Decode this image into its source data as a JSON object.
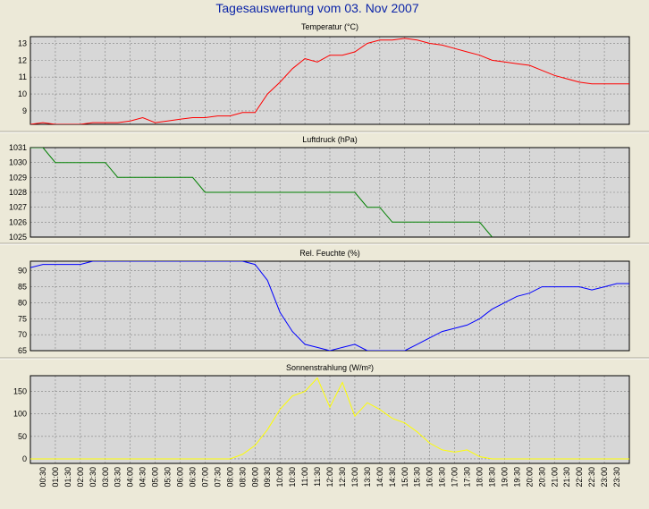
{
  "page_title": "Tagesauswertung vom 03. Nov 2007",
  "colors": {
    "background": "#ece9d8",
    "title": "#0b24a8",
    "plot_background": "#d7d7d7",
    "grid": "#808080"
  },
  "x_labels": [
    "00:30",
    "01:00",
    "01:30",
    "02:00",
    "02:30",
    "03:00",
    "03:30",
    "04:00",
    "04:30",
    "05:00",
    "05:30",
    "06:00",
    "06:30",
    "07:00",
    "07:30",
    "08:00",
    "08:30",
    "09:00",
    "09:30",
    "10:00",
    "10:30",
    "11:00",
    "11:30",
    "12:00",
    "12:30",
    "13:00",
    "13:30",
    "14:00",
    "14:30",
    "15:00",
    "15:30",
    "16:00",
    "16:30",
    "17:00",
    "17:30",
    "18:00",
    "18:30",
    "19:00",
    "19:30",
    "20:00",
    "20:30",
    "21:00",
    "21:30",
    "22:00",
    "22:30",
    "23:00",
    "23:30"
  ],
  "chart_data": [
    {
      "type": "line",
      "title": "Temperatur (°C)",
      "color": "#ff0000",
      "ylim": [
        8.2,
        13.4
      ],
      "yticks": [
        9,
        10,
        11,
        12,
        13
      ],
      "x": [
        0,
        0.5,
        1,
        1.5,
        2,
        2.5,
        3,
        3.5,
        4,
        4.5,
        5,
        5.5,
        6,
        6.5,
        7,
        7.5,
        8,
        8.5,
        9,
        9.5,
        10,
        10.5,
        11,
        11.5,
        12,
        12.5,
        13,
        13.5,
        14,
        14.5,
        15,
        15.5,
        16,
        16.5,
        17,
        17.5,
        18,
        18.5,
        19,
        19.5,
        20,
        20.5,
        21,
        21.5,
        22,
        22.5,
        23,
        23.5,
        24
      ],
      "values": [
        8.2,
        8.3,
        8.2,
        8.2,
        8.2,
        8.3,
        8.3,
        8.3,
        8.4,
        8.6,
        8.3,
        8.4,
        8.5,
        8.6,
        8.6,
        8.7,
        8.7,
        8.9,
        8.9,
        10.0,
        10.7,
        11.5,
        12.1,
        11.9,
        12.3,
        12.3,
        12.5,
        13.0,
        13.2,
        13.2,
        13.3,
        13.2,
        13.0,
        12.9,
        12.7,
        12.5,
        12.3,
        12.0,
        11.9,
        11.8,
        11.7,
        11.4,
        11.1,
        10.9,
        10.7,
        10.6,
        10.6,
        10.6,
        10.6
      ]
    },
    {
      "type": "line",
      "title": "Luftdruck (hPa)",
      "color": "#008000",
      "ylim": [
        1025,
        1031
      ],
      "yticks": [
        1025,
        1026,
        1027,
        1028,
        1029,
        1030,
        1031
      ],
      "x": [
        0,
        0.5,
        1,
        1.5,
        2,
        2.5,
        3,
        3.5,
        4,
        4.5,
        5,
        5.5,
        6,
        6.5,
        7,
        7.5,
        8,
        8.5,
        9,
        9.5,
        10,
        10.5,
        11,
        11.5,
        12,
        12.5,
        13,
        13.5,
        14,
        14.5,
        15,
        15.5,
        16,
        16.5,
        17,
        17.5,
        18,
        18.5
      ],
      "values": [
        1031,
        1031,
        1030,
        1030,
        1030,
        1030,
        1030,
        1029,
        1029,
        1029,
        1029,
        1029,
        1029,
        1029,
        1028,
        1028,
        1028,
        1028,
        1028,
        1028,
        1028,
        1028,
        1028,
        1028,
        1028,
        1028,
        1028,
        1027,
        1027,
        1026,
        1026,
        1026,
        1026,
        1026,
        1026,
        1026,
        1026,
        1025
      ]
    },
    {
      "type": "line",
      "title": "Rel. Feuchte (%)",
      "color": "#0000ff",
      "ylim": [
        65,
        93
      ],
      "yticks": [
        65,
        70,
        75,
        80,
        85,
        90
      ],
      "x": [
        0,
        0.5,
        1,
        1.5,
        2,
        2.5,
        3,
        3.5,
        4,
        4.5,
        5,
        5.5,
        6,
        6.5,
        7,
        7.5,
        8,
        8.5,
        9,
        9.5,
        10,
        10.5,
        11,
        11.5,
        12,
        12.5,
        13,
        13.5,
        14,
        14.5,
        15,
        15.5,
        16,
        16.5,
        17,
        17.5,
        18,
        18.5,
        19,
        19.5,
        20,
        20.5,
        21,
        21.5,
        22,
        22.5,
        23,
        23.5,
        24
      ],
      "values": [
        91,
        92,
        92,
        92,
        92,
        93,
        93,
        93,
        93,
        93,
        93,
        93,
        93,
        93,
        93,
        93,
        93,
        93,
        92,
        87,
        77,
        71,
        67,
        66,
        65,
        66,
        67,
        65,
        65,
        65,
        65,
        67,
        69,
        71,
        72,
        73,
        75,
        78,
        80,
        82,
        83,
        85,
        85,
        85,
        85,
        84,
        85,
        86,
        86
      ]
    },
    {
      "type": "line",
      "title": "Sonnenstrahlung (W/m²)",
      "color": "#ffff00",
      "ylim": [
        -10,
        185
      ],
      "yticks": [
        0,
        50,
        100,
        150
      ],
      "x": [
        0,
        0.5,
        1,
        1.5,
        2,
        2.5,
        3,
        3.5,
        4,
        4.5,
        5,
        5.5,
        6,
        6.5,
        7,
        7.5,
        8,
        8.5,
        9,
        9.5,
        10,
        10.5,
        11,
        11.5,
        12,
        12.5,
        13,
        13.5,
        14,
        14.5,
        15,
        15.5,
        16,
        16.5,
        17,
        17.5,
        18,
        18.5,
        19,
        19.5,
        20,
        20.5,
        21,
        21.5,
        22,
        22.5,
        23,
        23.5,
        24
      ],
      "values": [
        0,
        0,
        0,
        0,
        0,
        0,
        0,
        0,
        0,
        0,
        0,
        0,
        0,
        0,
        0,
        0,
        0,
        10,
        30,
        65,
        110,
        140,
        150,
        180,
        115,
        170,
        95,
        125,
        110,
        90,
        80,
        60,
        35,
        20,
        15,
        20,
        5,
        0,
        0,
        0,
        0,
        0,
        0,
        0,
        0,
        0,
        0,
        0,
        0
      ]
    }
  ]
}
